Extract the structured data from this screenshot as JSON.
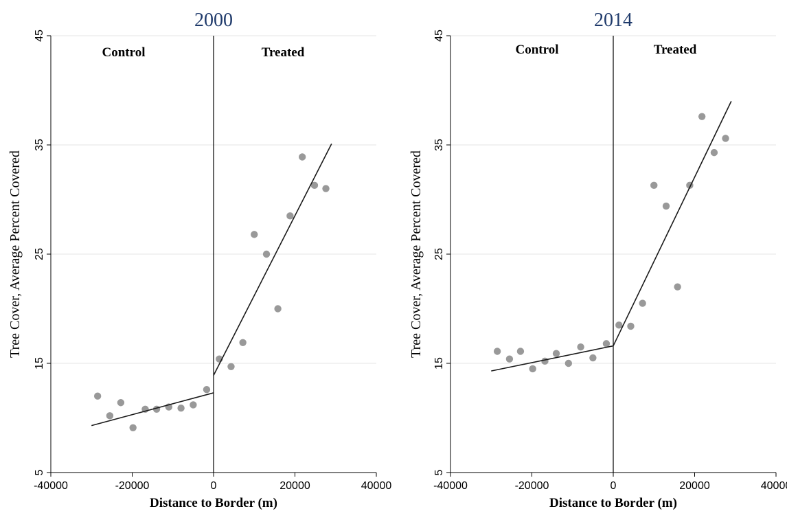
{
  "chart_data": [
    {
      "type": "scatter",
      "title": "2000",
      "xlabel": "Distance to Border (m)",
      "ylabel": "Tree Cover, Average Percent Covered",
      "xlim": [
        -40000,
        40000
      ],
      "ylim": [
        5,
        45
      ],
      "x_ticks": [
        -40000,
        -20000,
        0,
        20000,
        40000
      ],
      "x_tick_labels": [
        "-40000",
        "-20000",
        "0",
        "20000",
        "40000"
      ],
      "y_ticks": [
        5,
        15,
        25,
        35,
        45
      ],
      "y_tick_labels": [
        "5",
        "15",
        "25",
        "35",
        "45"
      ],
      "grid": "horizontal",
      "cutoff": 0,
      "region_labels": {
        "control": "Control",
        "treated": "Treated"
      },
      "colors": {
        "points": "#999999",
        "lines": "#1a1a1a",
        "title": "#1f3a6b"
      },
      "points": {
        "x": [
          -28500,
          -25500,
          -22800,
          -19800,
          -16800,
          -14000,
          -11000,
          -8000,
          -5000,
          -1700,
          1400,
          4300,
          7200,
          10000,
          13000,
          15800,
          18800,
          21800,
          24800,
          27600
        ],
        "y": [
          12.0,
          10.2,
          11.4,
          9.1,
          10.8,
          10.8,
          11.0,
          10.9,
          11.2,
          12.6,
          15.4,
          14.7,
          16.9,
          26.8,
          25.0,
          20.0,
          28.5,
          33.9,
          31.3,
          31.0
        ]
      },
      "fit_lines": [
        {
          "segment": "control",
          "x": [
            -30000,
            0
          ],
          "y": [
            9.3,
            12.3
          ]
        },
        {
          "segment": "treated",
          "x": [
            0,
            29000
          ],
          "y": [
            13.9,
            35.1
          ]
        }
      ]
    },
    {
      "type": "scatter",
      "title": "2014",
      "xlabel": "Distance to Border (m)",
      "ylabel": "Tree Cover, Average Percent Covered",
      "xlim": [
        -40000,
        40000
      ],
      "ylim": [
        5,
        45
      ],
      "x_ticks": [
        -40000,
        -20000,
        0,
        20000,
        40000
      ],
      "x_tick_labels": [
        "-40000",
        "-20000",
        "0",
        "20000",
        "40000"
      ],
      "y_ticks": [
        5,
        15,
        25,
        35,
        45
      ],
      "y_tick_labels": [
        "5",
        "15",
        "25",
        "35",
        "45"
      ],
      "grid": "horizontal",
      "cutoff": 0,
      "region_labels": {
        "control": "Control",
        "treated": "Treated"
      },
      "colors": {
        "points": "#999999",
        "lines": "#1a1a1a",
        "title": "#1f3a6b"
      },
      "points": {
        "x": [
          -28500,
          -25500,
          -22800,
          -19800,
          -16800,
          -14000,
          -11000,
          -8000,
          -5000,
          -1700,
          1400,
          4300,
          7200,
          10000,
          13000,
          15800,
          18800,
          21800,
          24800,
          27600
        ],
        "y": [
          16.1,
          15.4,
          16.1,
          14.5,
          15.2,
          15.9,
          15.0,
          16.5,
          15.5,
          16.8,
          18.5,
          18.4,
          20.5,
          31.3,
          29.4,
          22.0,
          31.3,
          37.6,
          34.3,
          35.6
        ]
      },
      "fit_lines": [
        {
          "segment": "control",
          "x": [
            -30000,
            0
          ],
          "y": [
            14.3,
            16.6
          ]
        },
        {
          "segment": "treated",
          "x": [
            0,
            29000
          ],
          "y": [
            16.6,
            39.0
          ]
        }
      ]
    }
  ]
}
